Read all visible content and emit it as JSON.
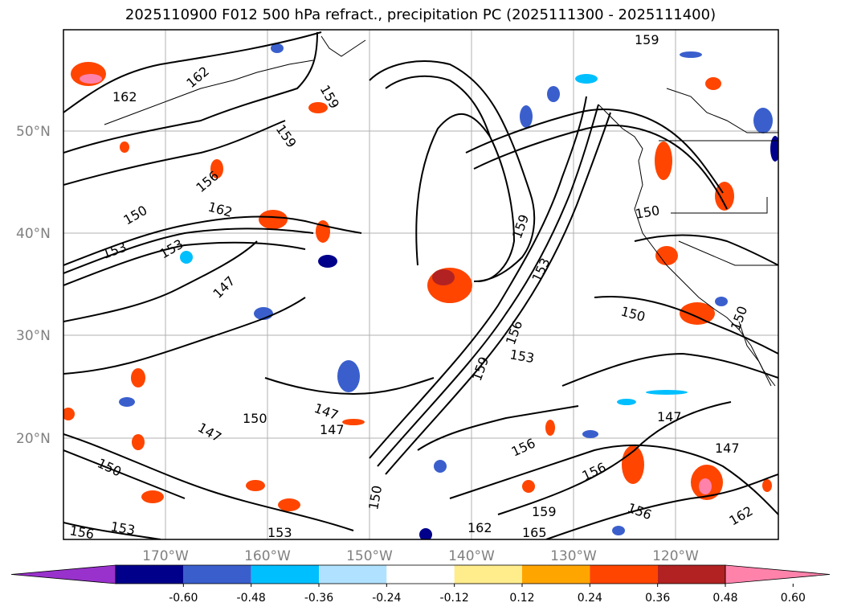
{
  "title": "2025110900 F012 500 hPa refract., precipitation PC (2025111300 - 2025111400)",
  "latitude_labels": [
    "50°N",
    "40°N",
    "30°N",
    "20°N"
  ],
  "longitude_labels": [
    "170°W",
    "160°W",
    "150°W",
    "140°W",
    "130°W",
    "120°W"
  ],
  "contour_labels": [
    "162",
    "162",
    "159",
    "159",
    "159",
    "156",
    "150",
    "162",
    "153",
    "153",
    "147",
    "159",
    "153",
    "156",
    "153",
    "150",
    "150",
    "150",
    "147",
    "147",
    "150",
    "147",
    "147",
    "150",
    "153",
    "156",
    "150",
    "156",
    "156",
    "159",
    "162",
    "165",
    "156",
    "162",
    "147",
    "153",
    "159"
  ],
  "colorbar": {
    "tick_labels": [
      "-0.60",
      "-0.48",
      "-0.36",
      "-0.24",
      "-0.12",
      "0.12",
      "0.24",
      "0.36",
      "0.48",
      "0.60"
    ],
    "colors": [
      "#9932cc",
      "#00008b",
      "#3a5fcd",
      "#00bfff",
      "#b0e2ff",
      "#ffffff",
      "#ffec8b",
      "#ffa500",
      "#ff4500",
      "#b22222",
      "#ff82ab"
    ]
  }
}
